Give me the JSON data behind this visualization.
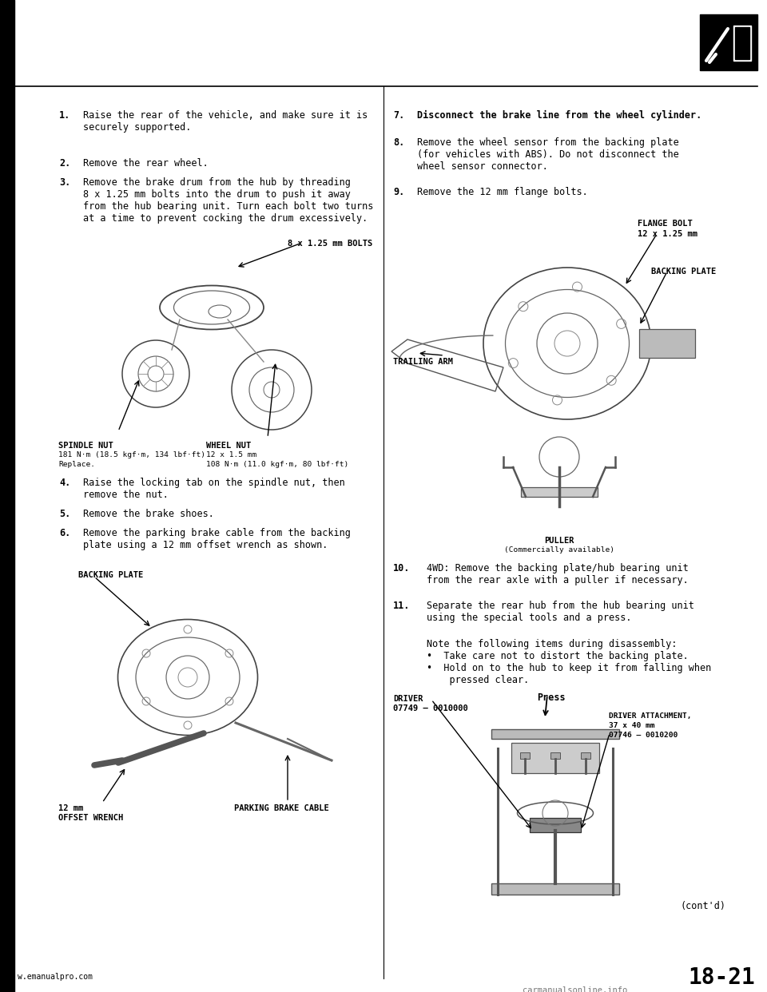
{
  "bg_color": "#ffffff",
  "page_number": "18-21",
  "website_left": "w.emanualpro.com",
  "website_bottom": "carmanualsonline.info",
  "left_column": {
    "step1": "Raise the rear of the vehicle, and make sure it is\nsecurely supported.",
    "step2": "Remove the rear wheel.",
    "step3": "Remove the brake drum from the hub by threading\n8 x 1.25 mm bolts into the drum to push it away\nfrom the hub bearing unit. Turn each bolt two turns\nat a time to prevent cocking the drum excessively.",
    "step4": "Raise the locking tab on the spindle nut, then\nremove the nut.",
    "step5": "Remove the brake shoes.",
    "step6": "Remove the parking brake cable from the backing\nplate using a 12 mm offset wrench as shown.",
    "diag1_bolts": "8 x 1.25 mm BOLTS",
    "diag1_spindle_bold": "SPINDLE NUT",
    "diag1_spindle_sub": "181 N·m (18.5 kgf·m, 134 lbf·ft)",
    "diag1_spindle_sub2": "Replace.",
    "diag1_wheel_bold": "WHEEL NUT",
    "diag1_wheel_sub": "12 x 1.5 mm",
    "diag1_wheel_sub2": "108 N·m (11.0 kgf·m, 80 lbf·ft)",
    "diag2_backing": "BACKING PLATE",
    "diag2_12mm": "12 mm",
    "diag2_wrench": "OFFSET WRENCH",
    "diag2_cable": "PARKING BRAKE CABLE"
  },
  "right_column": {
    "step7": "Disconnect the brake line from the wheel cylinder.",
    "step8": "Remove the wheel sensor from the backing plate\n(for vehicles with ABS). Do not disconnect the\nwheel sensor connector.",
    "step9": "Remove the 12 mm flange bolts.",
    "step10": "4WD: Remove the backing plate/hub bearing unit\nfrom the rear axle with a puller if necessary.",
    "step11": "Separate the rear hub from the hub bearing unit\nusing the special tools and a press.",
    "note": "Note the following items during disassembly:\n•  Take care not to distort the backing plate.\n•  Hold on to the hub to keep it from falling when\n    pressed clear.",
    "diag1_flange1": "FLANGE BOLT",
    "diag1_flange2": "12 x 1.25 mm",
    "diag1_backing": "BACKING PLATE",
    "diag1_trailing": "TRAILING ARM",
    "diag1_puller1": "PULLER",
    "diag1_puller2": "(Commercially available)",
    "press_label": "Press",
    "driver1": "DRIVER",
    "driver2": "07749 – 0010000",
    "driver_att1": "DRIVER ATTACHMENT,",
    "driver_att2": "37 x 40 mm",
    "driver_att3": "07746 – 0010200",
    "contd": "(cont'd)"
  },
  "step_fs": 8.5,
  "label_fs": 7.5,
  "small_fs": 6.8,
  "page_num_fs": 20,
  "web_fs": 7.0
}
